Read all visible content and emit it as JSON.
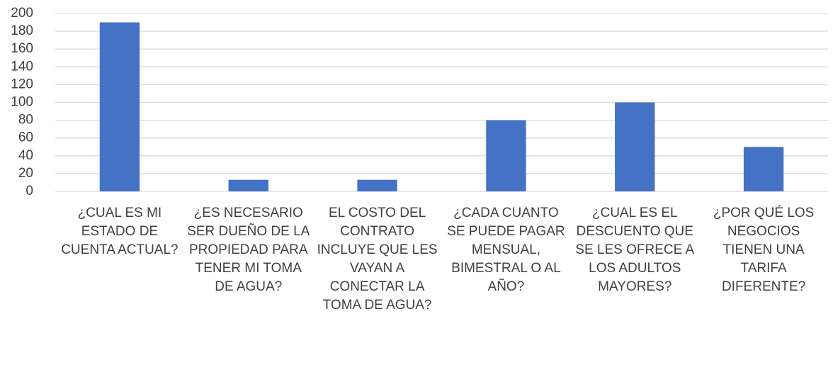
{
  "chart_data": {
    "type": "bar",
    "categories": [
      "¿CUAL ES MI ESTADO DE CUENTA ACTUAL?",
      "¿ES NECESARIO SER DUEÑO DE LA PROPIEDAD PARA TENER MI TOMA DE AGUA?",
      "EL COSTO DEL CONTRATO INCLUYE QUE LES VAYAN A CONECTAR LA TOMA DE AGUA?",
      "¿CADA CUANTO SE PUEDE PAGAR MENSUAL, BIMESTRAL O AL AÑO?",
      "¿CUAL ES EL DESCUENTO QUE SE LES OFRECE A LOS ADULTOS MAYORES?",
      "¿POR QUÉ LOS NEGOCIOS TIENEN UNA TARIFA DIFERENTE?"
    ],
    "values": [
      190,
      13,
      13,
      80,
      100,
      50
    ],
    "color": "#4472c4",
    "ylim": [
      0,
      200
    ],
    "yticks": [
      0,
      20,
      40,
      60,
      80,
      100,
      120,
      140,
      160,
      180,
      200
    ],
    "grid": true
  }
}
